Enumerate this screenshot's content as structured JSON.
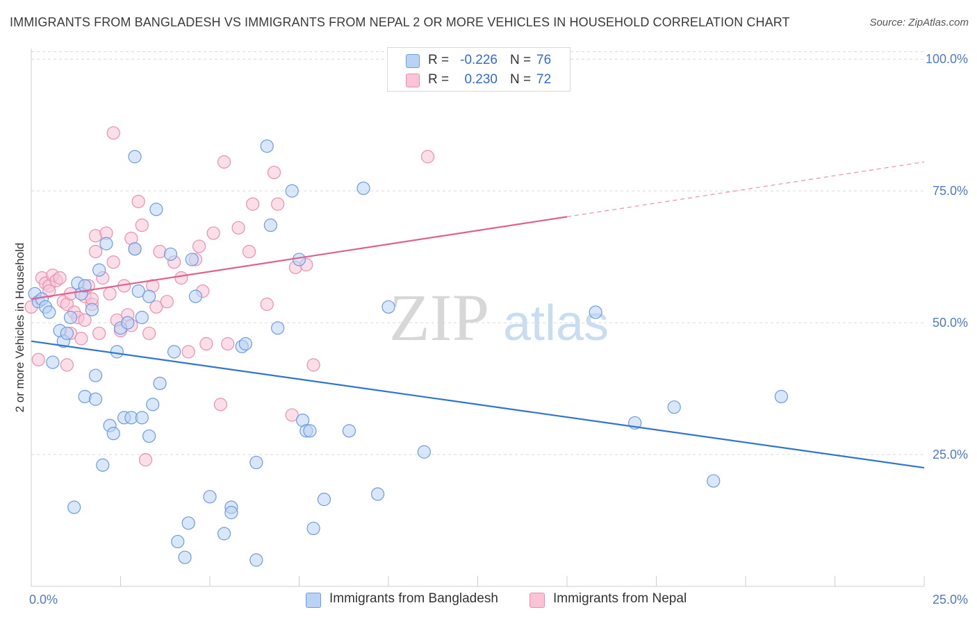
{
  "title": "IMMIGRANTS FROM BANGLADESH VS IMMIGRANTS FROM NEPAL 2 OR MORE VEHICLES IN HOUSEHOLD CORRELATION CHART",
  "source": "Source: ZipAtlas.com",
  "watermark": {
    "zip": "ZIP",
    "atlas": "atlas"
  },
  "legend": {
    "rows": [
      {
        "r_label": "R =",
        "r_value": "-0.226",
        "n_label": "N =",
        "n_value": "76"
      },
      {
        "r_label": "R =",
        "r_value": "0.230",
        "n_label": "N =",
        "n_value": "72"
      }
    ]
  },
  "colors": {
    "bangladesh_fill": "#b9d3f5",
    "bangladesh_stroke": "#6b9be0",
    "bangladesh_line": "#2f74d0",
    "nepal_fill": "#f8c4d6",
    "nepal_stroke": "#eb8eae",
    "nepal_line": "#e0608c",
    "grid": "#d9d9d9",
    "tick_text": "#4a7bc8"
  },
  "chart_data": {
    "type": "scatter",
    "title": "IMMIGRANTS FROM BANGLADESH VS IMMIGRANTS FROM NEPAL 2 OR MORE VEHICLES IN HOUSEHOLD CORRELATION CHART",
    "xlabel": "",
    "ylabel": "2 or more Vehicles in Household",
    "xlim": [
      0,
      25
    ],
    "ylim": [
      0,
      102
    ],
    "x_tick_labels": [
      "0.0%",
      "25.0%"
    ],
    "y_ticks": [
      25,
      50,
      75,
      100
    ],
    "y_tick_labels": [
      "25.0%",
      "50.0%",
      "75.0%",
      "100.0%"
    ],
    "grid": true,
    "legend_position": "top-center",
    "series": [
      {
        "name": "Immigrants from Bangladesh",
        "r": -0.226,
        "n": 76,
        "trend": {
          "x": [
            0,
            25
          ],
          "y": [
            46.5,
            22.5
          ],
          "dashed_from": null
        },
        "points": [
          [
            0.1,
            55.5
          ],
          [
            0.2,
            54.0
          ],
          [
            0.3,
            54.5
          ],
          [
            0.4,
            53.0
          ],
          [
            0.5,
            52.0
          ],
          [
            0.6,
            42.5
          ],
          [
            0.8,
            48.5
          ],
          [
            0.9,
            46.5
          ],
          [
            1.0,
            48.0
          ],
          [
            1.1,
            51.0
          ],
          [
            1.2,
            15.0
          ],
          [
            1.3,
            57.5
          ],
          [
            1.4,
            55.5
          ],
          [
            1.5,
            57.0
          ],
          [
            1.5,
            36.0
          ],
          [
            1.7,
            52.5
          ],
          [
            1.8,
            40.0
          ],
          [
            1.8,
            35.5
          ],
          [
            1.9,
            60.0
          ],
          [
            2.0,
            23.0
          ],
          [
            2.1,
            65.0
          ],
          [
            2.2,
            30.5
          ],
          [
            2.3,
            29.0
          ],
          [
            2.4,
            44.5
          ],
          [
            2.5,
            49.0
          ],
          [
            2.6,
            32.0
          ],
          [
            2.7,
            50.0
          ],
          [
            2.8,
            32.0
          ],
          [
            2.9,
            81.5
          ],
          [
            2.9,
            64.0
          ],
          [
            3.0,
            56.0
          ],
          [
            3.1,
            51.0
          ],
          [
            3.1,
            32.0
          ],
          [
            3.3,
            55.0
          ],
          [
            3.3,
            28.5
          ],
          [
            3.4,
            34.5
          ],
          [
            3.5,
            71.5
          ],
          [
            3.6,
            38.5
          ],
          [
            3.9,
            63.0
          ],
          [
            4.0,
            44.5
          ],
          [
            4.1,
            8.5
          ],
          [
            4.3,
            5.5
          ],
          [
            4.4,
            12.0
          ],
          [
            4.5,
            62.0
          ],
          [
            4.6,
            55.0
          ],
          [
            5.0,
            17.0
          ],
          [
            5.4,
            10.0
          ],
          [
            5.6,
            15.0
          ],
          [
            5.6,
            14.0
          ],
          [
            5.9,
            45.5
          ],
          [
            6.0,
            46.0
          ],
          [
            6.3,
            23.5
          ],
          [
            6.3,
            5.0
          ],
          [
            6.6,
            83.5
          ],
          [
            6.7,
            68.5
          ],
          [
            6.9,
            49.0
          ],
          [
            7.3,
            75.0
          ],
          [
            7.5,
            62.0
          ],
          [
            7.6,
            31.5
          ],
          [
            7.7,
            29.5
          ],
          [
            7.8,
            29.5
          ],
          [
            7.9,
            11.0
          ],
          [
            8.2,
            16.5
          ],
          [
            8.9,
            29.5
          ],
          [
            9.3,
            75.5
          ],
          [
            9.7,
            17.5
          ],
          [
            10.0,
            53.0
          ],
          [
            11.0,
            25.5
          ],
          [
            15.8,
            52.0
          ],
          [
            16.9,
            31.0
          ],
          [
            18.0,
            34.0
          ],
          [
            19.1,
            20.0
          ],
          [
            21.0,
            36.0
          ]
        ]
      },
      {
        "name": "Immigrants from Nepal",
        "r": 0.23,
        "n": 72,
        "trend": {
          "x": [
            0,
            25
          ],
          "y": [
            54.5,
            80.5
          ],
          "dashed_from": 15.0
        },
        "points": [
          [
            0.0,
            53.0
          ],
          [
            0.2,
            43.0
          ],
          [
            0.3,
            58.5
          ],
          [
            0.4,
            57.5
          ],
          [
            0.5,
            57.0
          ],
          [
            0.5,
            56.0
          ],
          [
            0.6,
            59.0
          ],
          [
            0.7,
            58.0
          ],
          [
            0.8,
            58.5
          ],
          [
            0.9,
            54.0
          ],
          [
            1.0,
            53.5
          ],
          [
            1.0,
            42.0
          ],
          [
            1.1,
            55.5
          ],
          [
            1.1,
            48.0
          ],
          [
            1.2,
            52.0
          ],
          [
            1.3,
            51.0
          ],
          [
            1.4,
            47.0
          ],
          [
            1.5,
            50.5
          ],
          [
            1.5,
            55.0
          ],
          [
            1.6,
            57.0
          ],
          [
            1.7,
            53.5
          ],
          [
            1.7,
            54.5
          ],
          [
            1.8,
            63.5
          ],
          [
            1.8,
            66.5
          ],
          [
            1.9,
            48.0
          ],
          [
            2.0,
            58.5
          ],
          [
            2.1,
            67.0
          ],
          [
            2.2,
            55.5
          ],
          [
            2.3,
            86.0
          ],
          [
            2.3,
            61.5
          ],
          [
            2.4,
            50.5
          ],
          [
            2.5,
            48.5
          ],
          [
            2.6,
            57.0
          ],
          [
            2.7,
            51.5
          ],
          [
            2.8,
            66.0
          ],
          [
            2.8,
            49.5
          ],
          [
            2.9,
            64.0
          ],
          [
            3.0,
            73.0
          ],
          [
            3.1,
            68.5
          ],
          [
            3.2,
            24.0
          ],
          [
            3.3,
            48.0
          ],
          [
            3.4,
            57.0
          ],
          [
            3.5,
            53.0
          ],
          [
            3.6,
            63.5
          ],
          [
            3.8,
            54.0
          ],
          [
            4.0,
            61.5
          ],
          [
            4.2,
            58.5
          ],
          [
            4.4,
            44.5
          ],
          [
            4.6,
            62.0
          ],
          [
            4.7,
            64.5
          ],
          [
            4.8,
            56.0
          ],
          [
            4.9,
            46.0
          ],
          [
            5.1,
            67.0
          ],
          [
            5.3,
            34.5
          ],
          [
            5.4,
            80.5
          ],
          [
            5.5,
            46.0
          ],
          [
            5.8,
            68.0
          ],
          [
            6.1,
            63.5
          ],
          [
            6.2,
            72.5
          ],
          [
            6.6,
            53.5
          ],
          [
            6.8,
            78.5
          ],
          [
            6.9,
            72.5
          ],
          [
            7.3,
            32.5
          ],
          [
            7.4,
            60.5
          ],
          [
            7.7,
            61.0
          ],
          [
            7.9,
            42.0
          ],
          [
            11.1,
            81.5
          ]
        ]
      }
    ]
  },
  "bottom_legend": [
    {
      "label": "Immigrants from Bangladesh"
    },
    {
      "label": "Immigrants from Nepal"
    }
  ]
}
